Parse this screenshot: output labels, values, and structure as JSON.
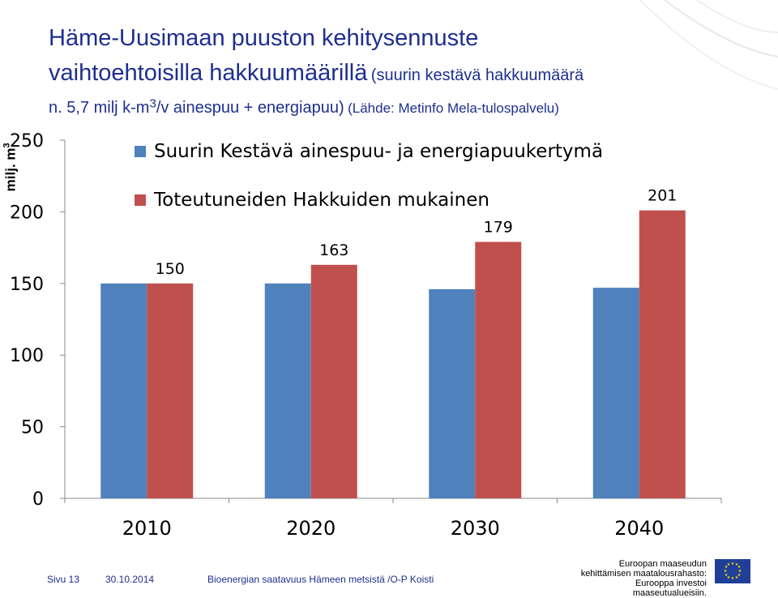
{
  "title": {
    "line1": "Häme-Uusimaan puuston kehitysennuste",
    "line2_main": "vaihtoehtoisilla hakkuumäärillä",
    "line2_small": "(suurin kestävä hakkuumäärä",
    "line3_prefix": "n. 5,7 milj k-m",
    "line3_sup": "3",
    "line3_main": "/v ainespuu + energiapuu)",
    "line3_small": "(Lähde: Metinfo Mela-tulospalvelu)"
  },
  "y_axis_label": "milj. m",
  "y_axis_label_sup": "3",
  "chart_data": {
    "type": "bar",
    "categories": [
      "2010",
      "2020",
      "2030",
      "2040"
    ],
    "series": [
      {
        "name": "Suurin Kestävä ainespuu- ja energiapuukertymä",
        "values": [
          150,
          150,
          146,
          147
        ],
        "color": "#4f81bd"
      },
      {
        "name": "Toteutuneiden Hakkuiden mukainen",
        "values": [
          150,
          163,
          179,
          201
        ],
        "color": "#c0504d"
      }
    ],
    "data_labels_series": 1,
    "data_labels": [
      "150",
      "163",
      "179",
      "201"
    ],
    "ylim": [
      0,
      250
    ],
    "yticks": [
      0,
      50,
      100,
      150,
      200,
      250
    ],
    "grid": false,
    "legend": "top-left"
  },
  "footer": {
    "page": "Sivu 13",
    "date": "30.10.2014",
    "source": "Bioenergian saatavuus Hämeen metsistä /O-P Koisti",
    "eu_line1": "Euroopan maaseudun",
    "eu_line2": "kehittämisen maatalousrahasto:",
    "eu_line3": "Eurooppa investoi maaseutualueisiin."
  }
}
